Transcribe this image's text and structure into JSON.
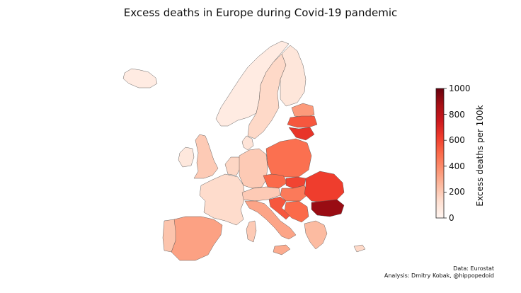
{
  "title": "Excess deaths in Europe during Covid-19 pandemic",
  "credits": {
    "data_line": "Data: Eurostat",
    "analysis_line": "Analysis: Dmitry Kobak, @hippopedoid"
  },
  "colorbar": {
    "label": "Excess deaths per 100k",
    "min": 0,
    "max": 1000,
    "ticks": [
      "0",
      "200",
      "400",
      "600",
      "800",
      "1000"
    ],
    "colormap": [
      "#fff5f0",
      "#fee0d2",
      "#fcbba1",
      "#fc9272",
      "#fb6a4a",
      "#ef3b2c",
      "#cb181d",
      "#a50f15",
      "#67000d"
    ]
  },
  "regions": [
    {
      "key": "iceland",
      "value": 60
    },
    {
      "key": "norway",
      "value": 60
    },
    {
      "key": "sweden",
      "value": 150
    },
    {
      "key": "finland",
      "value": 90
    },
    {
      "key": "estonia",
      "value": 350
    },
    {
      "key": "latvia",
      "value": 550
    },
    {
      "key": "lithuania",
      "value": 650
    },
    {
      "key": "ireland",
      "value": 80
    },
    {
      "key": "great-britain",
      "value": 200
    },
    {
      "key": "denmark",
      "value": 100
    },
    {
      "key": "benelux",
      "value": 160
    },
    {
      "key": "france",
      "value": 140
    },
    {
      "key": "germany",
      "value": 200
    },
    {
      "key": "poland",
      "value": 480
    },
    {
      "key": "czechia",
      "value": 500
    },
    {
      "key": "slovakia",
      "value": 600
    },
    {
      "key": "hungary",
      "value": 450
    },
    {
      "key": "austria-switzerland",
      "value": 200
    },
    {
      "key": "italy",
      "value": 320
    },
    {
      "key": "slovenia-croatia",
      "value": 550
    },
    {
      "key": "serbia-bosnia",
      "value": 500
    },
    {
      "key": "romania",
      "value": 620
    },
    {
      "key": "bulgaria",
      "value": 900
    },
    {
      "key": "greece",
      "value": 250
    },
    {
      "key": "spain",
      "value": 330
    },
    {
      "key": "portugal",
      "value": 220
    },
    {
      "key": "sardinia-corsica",
      "value": 200
    },
    {
      "key": "sicily",
      "value": 300
    },
    {
      "key": "cyprus",
      "value": 150
    }
  ]
}
